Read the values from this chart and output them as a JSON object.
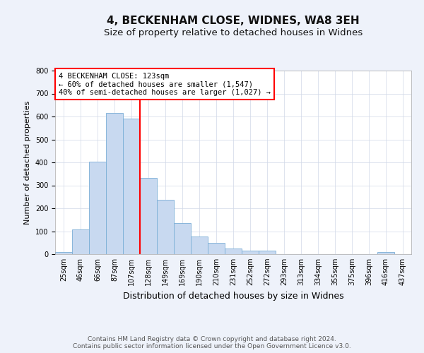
{
  "title": "4, BECKENHAM CLOSE, WIDNES, WA8 3EH",
  "subtitle": "Size of property relative to detached houses in Widnes",
  "xlabel": "Distribution of detached houses by size in Widnes",
  "ylabel": "Number of detached properties",
  "bar_labels": [
    "25sqm",
    "46sqm",
    "66sqm",
    "87sqm",
    "107sqm",
    "128sqm",
    "149sqm",
    "169sqm",
    "190sqm",
    "210sqm",
    "231sqm",
    "252sqm",
    "272sqm",
    "293sqm",
    "313sqm",
    "334sqm",
    "355sqm",
    "375sqm",
    "396sqm",
    "416sqm",
    "437sqm"
  ],
  "bar_heights": [
    8,
    107,
    403,
    614,
    592,
    332,
    238,
    136,
    76,
    50,
    25,
    15,
    15,
    0,
    0,
    0,
    0,
    0,
    0,
    8,
    0
  ],
  "bar_color": "#c8d9f0",
  "bar_edge_color": "#7aaed6",
  "vline_x": 5,
  "vline_color": "red",
  "annotation_box_text": "4 BECKENHAM CLOSE: 123sqm\n← 60% of detached houses are smaller (1,547)\n40% of semi-detached houses are larger (1,027) →",
  "annotation_box_edge_color": "red",
  "ylim": [
    0,
    800
  ],
  "yticks": [
    0,
    100,
    200,
    300,
    400,
    500,
    600,
    700,
    800
  ],
  "footer_line1": "Contains HM Land Registry data © Crown copyright and database right 2024.",
  "footer_line2": "Contains public sector information licensed under the Open Government Licence v3.0.",
  "title_fontsize": 11,
  "subtitle_fontsize": 9.5,
  "xlabel_fontsize": 9,
  "ylabel_fontsize": 8,
  "tick_fontsize": 7,
  "annotation_fontsize": 7.5,
  "footer_fontsize": 6.5,
  "background_color": "#eef2fa",
  "plot_bg_color": "#ffffff",
  "grid_color": "#d0d8e8"
}
